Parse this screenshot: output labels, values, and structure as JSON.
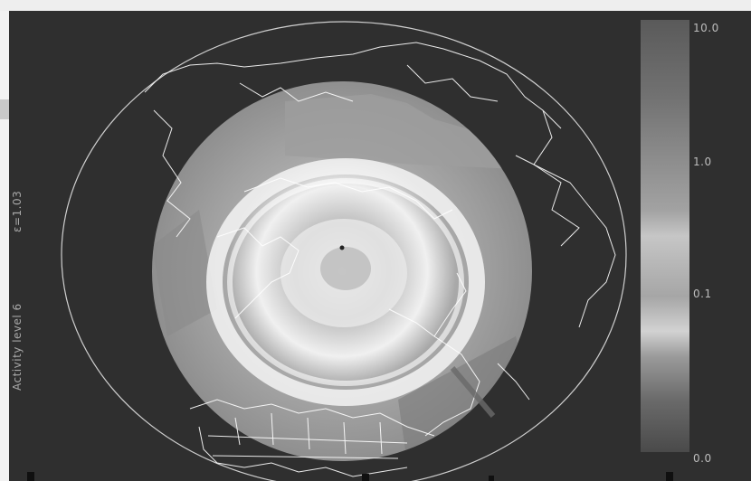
{
  "image": {
    "side_labels": {
      "activity": "Activity level 6",
      "param": "ε=1.03"
    },
    "colorbar": {
      "ticks": [
        "10.0",
        "1.0",
        "0.1",
        "0.0"
      ]
    },
    "colors": {
      "background": "#2f2f2f",
      "map_lines": "#ffffff",
      "aurora_oval": "#f2f2f2"
    }
  }
}
